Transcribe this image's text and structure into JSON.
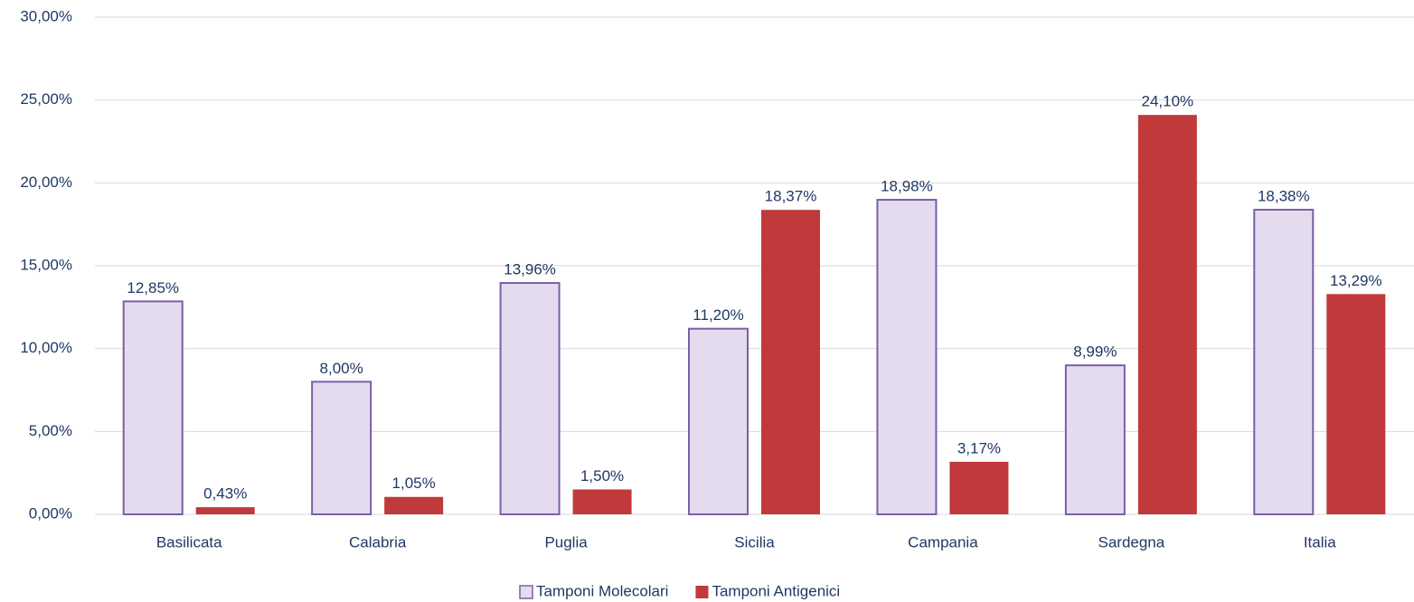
{
  "chart_data": {
    "type": "bar",
    "categories": [
      "Basilicata",
      "Calabria",
      "Puglia",
      "Sicilia",
      "Campania",
      "Sardegna",
      "Italia"
    ],
    "series": [
      {
        "name": "Tamponi Molecolari",
        "color": "#e4dcee",
        "edge": "#7b5ea7",
        "values": [
          12.85,
          8.0,
          13.96,
          11.2,
          18.98,
          8.99,
          18.38
        ],
        "value_labels": [
          "12,85%",
          "8,00%",
          "13,96%",
          "11,20%",
          "18,98%",
          "8,99%",
          "18,38%"
        ]
      },
      {
        "name": "Tamponi Antigenici",
        "color": "#c0393b",
        "values": [
          0.43,
          1.05,
          1.5,
          18.37,
          3.17,
          24.1,
          13.29
        ],
        "value_labels": [
          "0,43%",
          "1,05%",
          "1,50%",
          "18,37%",
          "3,17%",
          "24,10%",
          "13,29%"
        ]
      }
    ],
    "ylim": [
      0,
      30
    ],
    "yticks": [
      {
        "value": 0,
        "label": "0,00%"
      },
      {
        "value": 5,
        "label": "5,00%"
      },
      {
        "value": 10,
        "label": "10,00%"
      },
      {
        "value": 15,
        "label": "15,00%"
      },
      {
        "value": 20,
        "label": "20,00%"
      },
      {
        "value": 25,
        "label": "25,00%"
      },
      {
        "value": 30,
        "label": "30,00%"
      }
    ],
    "grid": true,
    "legend": "bottom"
  }
}
